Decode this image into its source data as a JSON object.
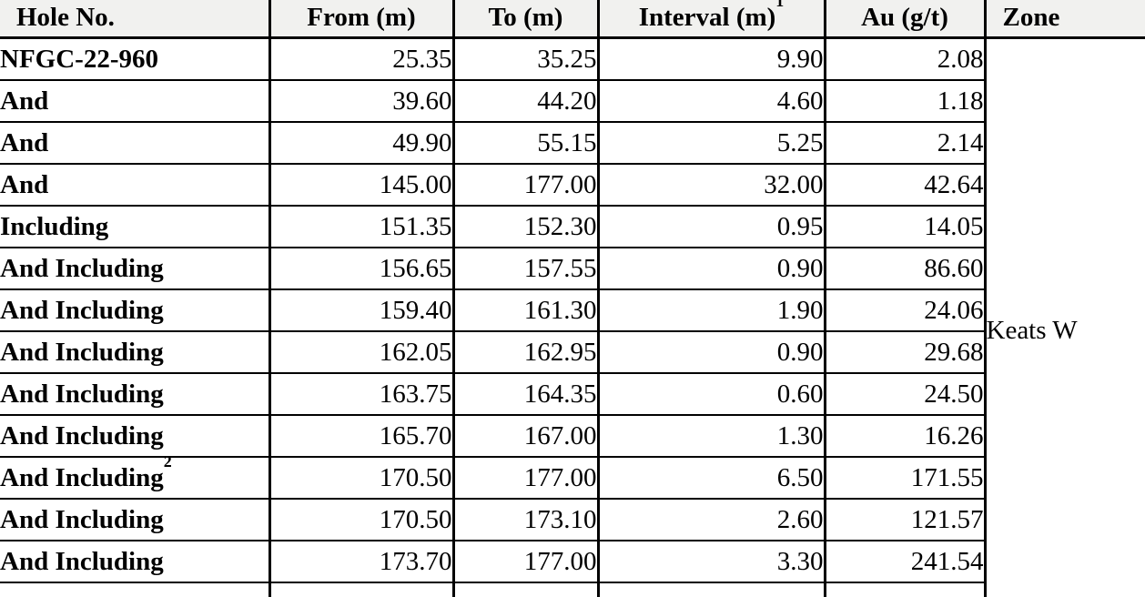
{
  "table": {
    "title": "drill-intercept-results",
    "colors": {
      "header_bg": "#f1f1ef",
      "border": "#000000",
      "text": "#000000",
      "body_bg": "#ffffff"
    },
    "columns": [
      {
        "label": "Hole No.",
        "sup": ""
      },
      {
        "label": "From (m)",
        "sup": ""
      },
      {
        "label": "To (m)",
        "sup": ""
      },
      {
        "label": "Interval (m)",
        "sup": "1"
      },
      {
        "label": "Au (g/t)",
        "sup": ""
      },
      {
        "label": "Zone",
        "sup": ""
      }
    ],
    "zone": "Keats W",
    "rows": [
      {
        "hole": "NFGC-22-960",
        "hole_sup": "",
        "from": "25.35",
        "to": "35.25",
        "interval": "9.90",
        "au": "2.08"
      },
      {
        "hole": "And",
        "hole_sup": "",
        "from": "39.60",
        "to": "44.20",
        "interval": "4.60",
        "au": "1.18"
      },
      {
        "hole": "And",
        "hole_sup": "",
        "from": "49.90",
        "to": "55.15",
        "interval": "5.25",
        "au": "2.14"
      },
      {
        "hole": "And",
        "hole_sup": "",
        "from": "145.00",
        "to": "177.00",
        "interval": "32.00",
        "au": "42.64"
      },
      {
        "hole": "Including",
        "hole_sup": "",
        "from": "151.35",
        "to": "152.30",
        "interval": "0.95",
        "au": "14.05"
      },
      {
        "hole": "And Including",
        "hole_sup": "",
        "from": "156.65",
        "to": "157.55",
        "interval": "0.90",
        "au": "86.60"
      },
      {
        "hole": "And Including",
        "hole_sup": "",
        "from": "159.40",
        "to": "161.30",
        "interval": "1.90",
        "au": "24.06"
      },
      {
        "hole": "And Including",
        "hole_sup": "",
        "from": "162.05",
        "to": "162.95",
        "interval": "0.90",
        "au": "29.68"
      },
      {
        "hole": "And Including",
        "hole_sup": "",
        "from": "163.75",
        "to": "164.35",
        "interval": "0.60",
        "au": "24.50"
      },
      {
        "hole": "And Including",
        "hole_sup": "",
        "from": "165.70",
        "to": "167.00",
        "interval": "1.30",
        "au": "16.26"
      },
      {
        "hole": "And Including",
        "hole_sup": "2",
        "from": "170.50",
        "to": "177.00",
        "interval": "6.50",
        "au": "171.55"
      },
      {
        "hole": "And Including",
        "hole_sup": "",
        "from": "170.50",
        "to": "173.10",
        "interval": "2.60",
        "au": "121.57"
      },
      {
        "hole": "And Including",
        "hole_sup": "",
        "from": "173.70",
        "to": "177.00",
        "interval": "3.30",
        "au": "241.54"
      }
    ]
  }
}
